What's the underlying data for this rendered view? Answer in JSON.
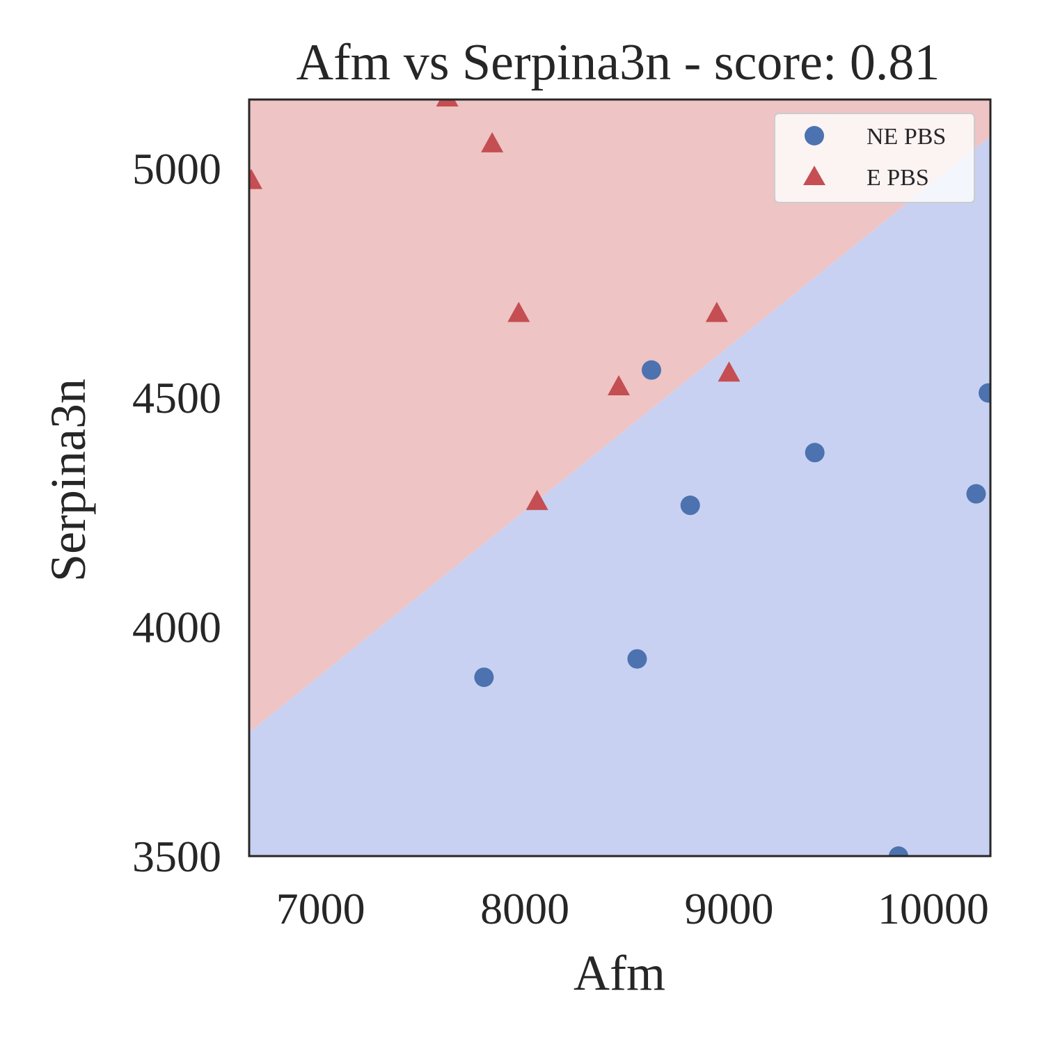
{
  "chart_data": {
    "type": "scatter",
    "title": "Afm vs Serpina3n - score: 0.81",
    "xlabel": "Afm",
    "ylabel": "Serpina3n",
    "xlim": [
      6650,
      10280
    ],
    "ylim": [
      3500,
      5150
    ],
    "xticks": [
      7000,
      8000,
      9000,
      10000
    ],
    "yticks": [
      3500,
      4000,
      4500,
      5000
    ],
    "grid": false,
    "legend_position": "top-right",
    "decision_boundary": {
      "x": [
        6650,
        10280
      ],
      "y": [
        3770,
        5070
      ],
      "below_color": "#c9d1f2",
      "above_color": "#eec4c4"
    },
    "series": [
      {
        "name": "NE PBS",
        "marker": "circle",
        "color": "#4c72b0",
        "points": [
          {
            "x": 7800,
            "y": 3890
          },
          {
            "x": 8550,
            "y": 3930
          },
          {
            "x": 8620,
            "y": 4560
          },
          {
            "x": 8810,
            "y": 4265
          },
          {
            "x": 9420,
            "y": 4380
          },
          {
            "x": 9830,
            "y": 3500
          },
          {
            "x": 10210,
            "y": 4290
          },
          {
            "x": 10270,
            "y": 4510
          }
        ]
      },
      {
        "name": "E PBS",
        "marker": "triangle",
        "color": "#c44e52",
        "points": [
          {
            "x": 6660,
            "y": 4970
          },
          {
            "x": 7620,
            "y": 5150
          },
          {
            "x": 7840,
            "y": 5050
          },
          {
            "x": 7970,
            "y": 4680
          },
          {
            "x": 8060,
            "y": 4270
          },
          {
            "x": 8460,
            "y": 4520
          },
          {
            "x": 8940,
            "y": 4680
          },
          {
            "x": 9000,
            "y": 4550
          }
        ]
      }
    ]
  }
}
